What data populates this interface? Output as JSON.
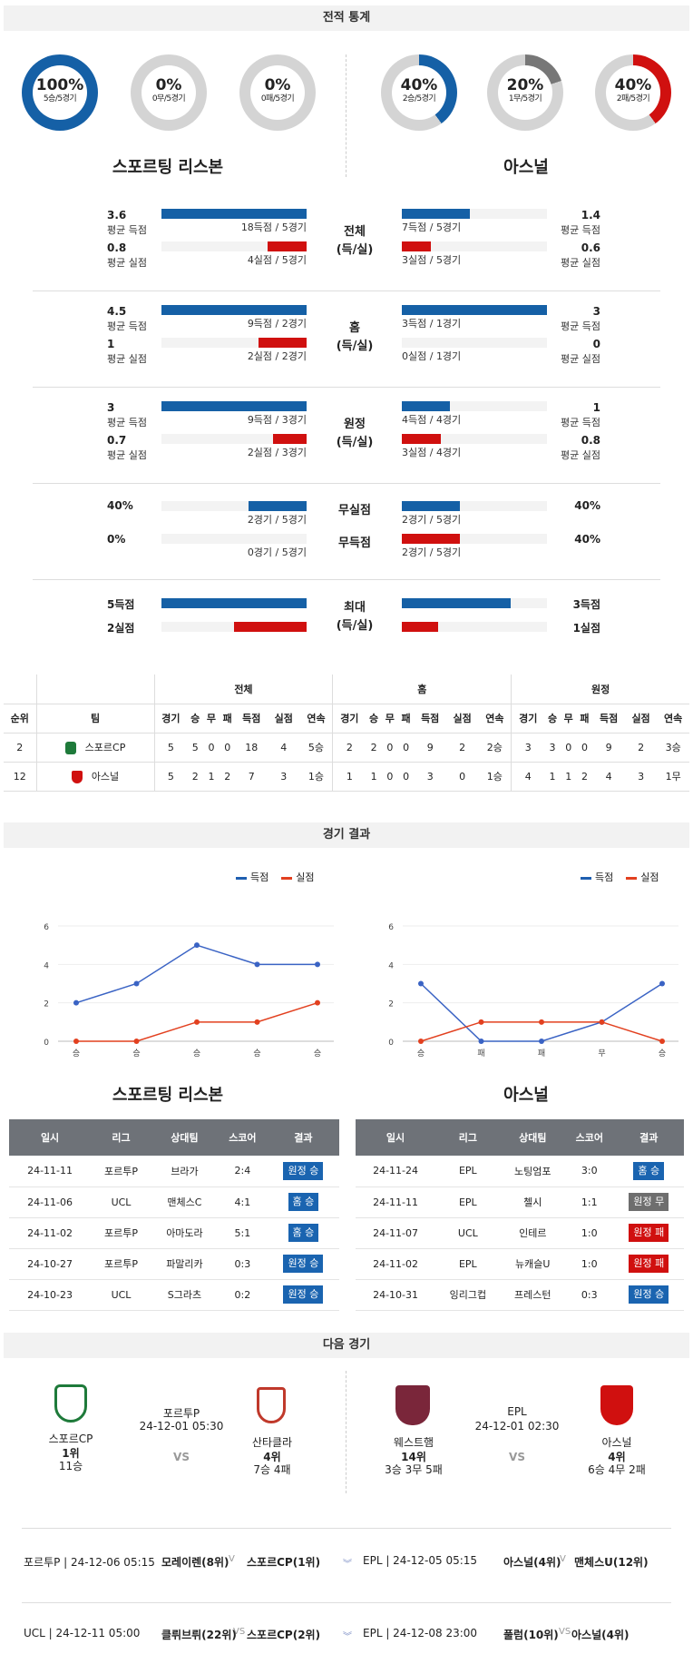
{
  "sections": {
    "stats": "전적 통계",
    "results": "경기 결과",
    "next": "다음 경기"
  },
  "donuts": [
    {
      "pct": "100%",
      "sub": "5승/5경기",
      "value": 1.0,
      "color": "#1560a6"
    },
    {
      "pct": "0%",
      "sub": "0무/5경기",
      "value": 0.0,
      "color": "#777777"
    },
    {
      "pct": "0%",
      "sub": "0패/5경기",
      "value": 0.0,
      "color": "#d0100f"
    },
    {
      "pct": "40%",
      "sub": "2승/5경기",
      "value": 0.4,
      "color": "#1560a6"
    },
    {
      "pct": "20%",
      "sub": "1무/5경기",
      "value": 0.2,
      "color": "#777777"
    },
    {
      "pct": "40%",
      "sub": "2패/5경기",
      "value": 0.4,
      "color": "#d0100f"
    }
  ],
  "teams": {
    "home": "스포르팅 리스본",
    "away": "아스널"
  },
  "groups": [
    {
      "cat": "전체\n(득/실)",
      "l1": {
        "num": "3.6",
        "lbl": "평균 득점",
        "txt": "18득점 / 5경기",
        "frac": 1.0
      },
      "l2": {
        "num": "0.8",
        "lbl": "평균 실점",
        "txt": "4실점 / 5경기",
        "frac": 0.27
      },
      "r1": {
        "num": "1.4",
        "lbl": "평균 득점",
        "txt": "7득점 / 5경기",
        "frac": 0.47
      },
      "r2": {
        "num": "0.6",
        "lbl": "평균 실점",
        "txt": "3실점 / 5경기",
        "frac": 0.2
      }
    },
    {
      "cat": "홈\n(득/실)",
      "l1": {
        "num": "4.5",
        "lbl": "평균 득점",
        "txt": "9득점 / 2경기",
        "frac": 1.0
      },
      "l2": {
        "num": "1",
        "lbl": "평균 실점",
        "txt": "2실점 / 2경기",
        "frac": 0.33
      },
      "r1": {
        "num": "3",
        "lbl": "평균 득점",
        "txt": "3득점 / 1경기",
        "frac": 1.0
      },
      "r2": {
        "num": "0",
        "lbl": "평균 실점",
        "txt": "0실점 / 1경기",
        "frac": 0.0
      }
    },
    {
      "cat": "원정\n(득/실)",
      "l1": {
        "num": "3",
        "lbl": "평균 득점",
        "txt": "9득점 / 3경기",
        "frac": 1.0
      },
      "l2": {
        "num": "0.7",
        "lbl": "평균 실점",
        "txt": "2실점 / 3경기",
        "frac": 0.23
      },
      "r1": {
        "num": "1",
        "lbl": "평균 득점",
        "txt": "4득점 / 4경기",
        "frac": 0.33
      },
      "r2": {
        "num": "0.8",
        "lbl": "평균 실점",
        "txt": "3실점 / 4경기",
        "frac": 0.27
      }
    }
  ],
  "clean": {
    "cat1": "무실점",
    "cat2": "무득점",
    "l1": {
      "num": "40%",
      "txt": "2경기 / 5경기",
      "frac": 0.4
    },
    "l2": {
      "num": "0%",
      "txt": "0경기 / 5경기",
      "frac": 0.0
    },
    "r1": {
      "num": "40%",
      "txt": "2경기 / 5경기",
      "frac": 0.4
    },
    "r2": {
      "num": "40%",
      "txt": "2경기 / 5경기",
      "frac": 0.4
    }
  },
  "max": {
    "cat": "최대\n(득/실)",
    "l1": "5득점",
    "l2": "2실점",
    "r1": "3득점",
    "r2": "1실점",
    "l1f": 1.0,
    "l2f": 0.5,
    "r1f": 0.75,
    "r2f": 0.25
  },
  "standings": {
    "groups": [
      "전체",
      "홈",
      "원정"
    ],
    "head": [
      "순위",
      "팀",
      "경기",
      "승",
      "무",
      "패",
      "득점",
      "실점",
      "연속",
      "경기",
      "승",
      "무",
      "패",
      "득점",
      "실점",
      "연속",
      "경기",
      "승",
      "무",
      "패",
      "득점",
      "실점",
      "연속"
    ],
    "rows": [
      [
        "2",
        "스포르CP",
        "5",
        "5",
        "0",
        "0",
        "18",
        "4",
        "5승",
        "2",
        "2",
        "0",
        "0",
        "9",
        "2",
        "2승",
        "3",
        "3",
        "0",
        "0",
        "9",
        "2",
        "3승"
      ],
      [
        "12",
        "아스널",
        "5",
        "2",
        "1",
        "2",
        "7",
        "3",
        "1승",
        "1",
        "1",
        "0",
        "0",
        "3",
        "0",
        "1승",
        "4",
        "1",
        "1",
        "2",
        "4",
        "3",
        "1무"
      ]
    ]
  },
  "legend": {
    "for": "득점",
    "against": "실점"
  },
  "chart_data": [
    {
      "type": "line",
      "x": [
        "승",
        "승",
        "승",
        "승",
        "승"
      ],
      "ylim": [
        0,
        6
      ],
      "yticks": [
        0,
        2,
        4,
        6
      ],
      "series": [
        {
          "name": "득점",
          "values": [
            2,
            3,
            5,
            4,
            4
          ],
          "color": "#3a63c4"
        },
        {
          "name": "실점",
          "values": [
            0,
            0,
            1,
            1,
            2
          ],
          "color": "#e2401f"
        }
      ]
    },
    {
      "type": "line",
      "x": [
        "승",
        "패",
        "패",
        "무",
        "승"
      ],
      "ylim": [
        0,
        6
      ],
      "yticks": [
        0,
        2,
        4,
        6
      ],
      "series": [
        {
          "name": "득점",
          "values": [
            3,
            0,
            0,
            1,
            3
          ],
          "color": "#3a63c4"
        },
        {
          "name": "실점",
          "values": [
            0,
            1,
            1,
            1,
            0
          ],
          "color": "#e2401f"
        }
      ]
    }
  ],
  "results_head": [
    "일시",
    "리그",
    "상대팀",
    "스코어",
    "결과"
  ],
  "results_left": [
    [
      "24-11-11",
      "포르투P",
      "브라가",
      "2:4",
      "원정 승",
      "b"
    ],
    [
      "24-11-06",
      "UCL",
      "맨체스C",
      "4:1",
      "홈 승",
      "b"
    ],
    [
      "24-11-02",
      "포르투P",
      "아마도라",
      "5:1",
      "홈 승",
      "b"
    ],
    [
      "24-10-27",
      "포르투P",
      "파말리카",
      "0:3",
      "원정 승",
      "b"
    ],
    [
      "24-10-23",
      "UCL",
      "S그라츠",
      "0:2",
      "원정 승",
      "b"
    ]
  ],
  "results_right": [
    [
      "24-11-24",
      "EPL",
      "노팅엄포",
      "3:0",
      "홈 승",
      "b"
    ],
    [
      "24-11-11",
      "EPL",
      "첼시",
      "1:1",
      "원정 무",
      "g"
    ],
    [
      "24-11-07",
      "UCL",
      "인테르",
      "1:0",
      "원정 패",
      "r"
    ],
    [
      "24-11-02",
      "EPL",
      "뉴캐슬U",
      "1:0",
      "원정 패",
      "r"
    ],
    [
      "24-10-31",
      "잉리그컵",
      "프레스턴",
      "0:3",
      "원정 승",
      "b"
    ]
  ],
  "next": {
    "left": {
      "home": "스포르CP",
      "home_rank": "1위",
      "home_rec": "11승",
      "league": "포르투P",
      "time": "24-12-01 05:30",
      "vs": "VS",
      "away": "산타클라",
      "away_rank": "4위",
      "away_rec": "7승 4패"
    },
    "right": {
      "home": "웨스트햄",
      "home_rank": "14위",
      "home_rec": "3승 3무 5패",
      "league": "EPL",
      "time": "24-12-01 02:30",
      "vs": "VS",
      "away": "아스널",
      "away_rank": "4위",
      "away_rec": "6승 4무 2패"
    }
  },
  "upcoming": [
    {
      "l_info": "포르투P | 24-12-06 05:15",
      "l_teams": "모레이렌(8위)",
      "l_vs": "V",
      "l_team2": "스포르CP(1위)",
      "r_info": "EPL | 24-12-05 05:15",
      "r_teams": "아스널(4위)",
      "r_vs": "V",
      "r_team2": "맨체스U(12위)"
    },
    {
      "l_info": "UCL | 24-12-11 05:00",
      "l_teams": "클뤼브뤼(22위)",
      "l_vs": "VS",
      "l_team2": "스포르CP(2위)",
      "r_info": "EPL | 24-12-08 23:00",
      "r_teams": "풀럼(10위)",
      "r_vs": "VS",
      "r_team2": "아스널(4위)"
    }
  ]
}
